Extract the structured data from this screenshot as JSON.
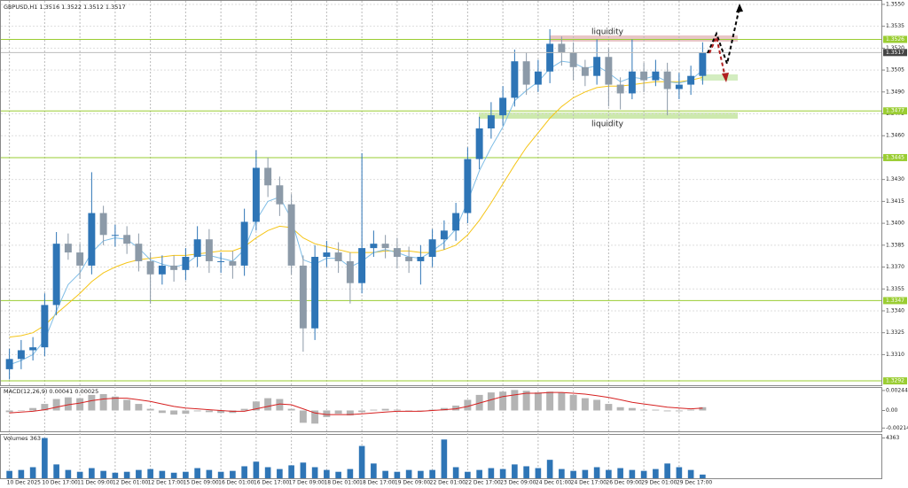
{
  "chart_data": [
    {
      "type": "candlestick",
      "title": "GBPUSD,H1  1.3516 1.3522 1.3512 1.3517",
      "categories": [
        "10 Dec 2025",
        null,
        null,
        "10 Dec 17:00",
        null,
        null,
        "11 Dec 09:00",
        null,
        null,
        "12 Dec 01:00",
        null,
        null,
        "12 Dec 17:00",
        null,
        null,
        "15 Dec 09:00",
        null,
        null,
        "16 Dec 01:00",
        null,
        null,
        "16 Dec 17:00",
        null,
        null,
        "17 Dec 09:00",
        null,
        null,
        "18 Dec 01:00",
        null,
        null,
        "18 Dec 17:00",
        null,
        null,
        "19 Dec 09:00",
        null,
        null,
        "22 Dec 01:00",
        null,
        null,
        "22 Dec 17:00",
        null,
        null,
        "23 Dec 09:00",
        null,
        null,
        "24 Dec 01:00",
        null,
        null,
        "24 Dec 17:00",
        null,
        null,
        "26 Dec 09:00",
        null,
        null,
        "29 Dec 01:00",
        null,
        null,
        "29 Dec 17:00",
        null,
        null
      ],
      "open": [
        1.33,
        1.3307,
        1.3313,
        1.3315,
        1.3344,
        1.3386,
        1.338,
        1.3371,
        1.3407,
        1.3392,
        1.3392,
        1.3386,
        1.3374,
        1.3365,
        1.3371,
        1.3368,
        1.3377,
        1.3389,
        1.3374,
        1.3374,
        1.3371,
        1.3401,
        1.3438,
        1.3426,
        1.3413,
        1.3371,
        1.3328,
        1.3377,
        1.338,
        1.3374,
        1.3359,
        1.3383,
        1.3386,
        1.3383,
        1.3377,
        1.3374,
        1.3377,
        1.3389,
        1.3395,
        1.3407,
        1.3444,
        1.3465,
        1.3474,
        1.3486,
        1.3511,
        1.3495,
        1.3504,
        1.3523,
        1.3517,
        1.3507,
        1.3501,
        1.3514,
        1.3495,
        1.3489,
        1.3504,
        1.3498,
        1.3504,
        1.3492,
        1.3495,
        1.3501
      ],
      "high": [
        1.3314,
        1.332,
        1.3322,
        1.3352,
        1.3394,
        1.3393,
        1.3386,
        1.3435,
        1.3412,
        1.3399,
        1.3398,
        1.3393,
        1.338,
        1.3378,
        1.3378,
        1.3383,
        1.3398,
        1.3396,
        1.338,
        1.3381,
        1.341,
        1.345,
        1.3445,
        1.3432,
        1.342,
        1.3378,
        1.3385,
        1.3388,
        1.3387,
        1.338,
        1.3448,
        1.3395,
        1.3392,
        1.339,
        1.3384,
        1.3385,
        1.3396,
        1.3402,
        1.3414,
        1.3452,
        1.3473,
        1.3483,
        1.3494,
        1.3519,
        1.3517,
        1.3512,
        1.3533,
        1.3528,
        1.3524,
        1.3512,
        1.3526,
        1.352,
        1.35,
        1.3526,
        1.351,
        1.3512,
        1.351,
        1.3503,
        1.3508,
        1.3524
      ],
      "low": [
        1.3293,
        1.33,
        1.3306,
        1.3309,
        1.3337,
        1.3375,
        1.3362,
        1.3365,
        1.3385,
        1.3384,
        1.3379,
        1.3367,
        1.3345,
        1.3358,
        1.336,
        1.3361,
        1.337,
        1.3366,
        1.3366,
        1.3362,
        1.3364,
        1.3395,
        1.3418,
        1.3405,
        1.3365,
        1.3312,
        1.332,
        1.337,
        1.3366,
        1.3345,
        1.3352,
        1.3377,
        1.3376,
        1.3369,
        1.3366,
        1.3358,
        1.337,
        1.3382,
        1.3388,
        1.34,
        1.3437,
        1.3458,
        1.3467,
        1.348,
        1.3488,
        1.349,
        1.3496,
        1.3508,
        1.3498,
        1.3494,
        1.3495,
        1.348,
        1.3478,
        1.3485,
        1.349,
        1.3494,
        1.3474,
        1.3485,
        1.3488,
        1.3495
      ],
      "close": [
        1.3307,
        1.3313,
        1.3315,
        1.3344,
        1.3386,
        1.338,
        1.3371,
        1.3407,
        1.3392,
        1.3392,
        1.3386,
        1.3374,
        1.3365,
        1.3371,
        1.3368,
        1.3377,
        1.3389,
        1.3374,
        1.3374,
        1.3371,
        1.3401,
        1.3438,
        1.3426,
        1.3413,
        1.3371,
        1.3328,
        1.3377,
        1.338,
        1.3374,
        1.3359,
        1.3383,
        1.3386,
        1.3383,
        1.3377,
        1.3374,
        1.3377,
        1.3389,
        1.3395,
        1.3407,
        1.3444,
        1.3465,
        1.3474,
        1.3486,
        1.3511,
        1.3495,
        1.3504,
        1.3523,
        1.3517,
        1.3507,
        1.3501,
        1.3514,
        1.3495,
        1.3489,
        1.3504,
        1.3498,
        1.3504,
        1.3492,
        1.3495,
        1.3501,
        1.3517
      ],
      "up_color": "#2e75b6",
      "down_color": "#8c9aa8",
      "lines": [
        {
          "color": "#f5c518",
          "values": [
            1.3322,
            1.3323,
            1.3325,
            1.333,
            1.3338,
            1.3345,
            1.3352,
            1.336,
            1.3366,
            1.337,
            1.3373,
            1.3375,
            1.3376,
            1.3377,
            1.3378,
            1.3378,
            1.3379,
            1.338,
            1.3381,
            1.3381,
            1.3384,
            1.339,
            1.3395,
            1.3398,
            1.3397,
            1.339,
            1.3386,
            1.3384,
            1.3382,
            1.338,
            1.338,
            1.338,
            1.3381,
            1.3381,
            1.3381,
            1.338,
            1.338,
            1.3382,
            1.3385,
            1.3392,
            1.3402,
            1.3414,
            1.3427,
            1.344,
            1.3452,
            1.3462,
            1.3472,
            1.348,
            1.3486,
            1.349,
            1.3493,
            1.3494,
            1.3494,
            1.3495,
            1.3496,
            1.3497,
            1.3497,
            1.3497,
            1.3498,
            1.35
          ]
        },
        {
          "color": "#7fbde6",
          "values": [
            1.3303,
            1.3306,
            1.331,
            1.332,
            1.334,
            1.3358,
            1.3366,
            1.338,
            1.3388,
            1.339,
            1.3389,
            1.3383,
            1.3375,
            1.3372,
            1.337,
            1.3372,
            1.3378,
            1.3378,
            1.3376,
            1.3374,
            1.3382,
            1.3402,
            1.3415,
            1.3418,
            1.3403,
            1.3375,
            1.3372,
            1.3376,
            1.3376,
            1.337,
            1.3374,
            1.338,
            1.3382,
            1.338,
            1.3377,
            1.3376,
            1.3381,
            1.3387,
            1.3396,
            1.3415,
            1.3436,
            1.3452,
            1.3466,
            1.3484,
            1.3491,
            1.3497,
            1.3506,
            1.3511,
            1.351,
            1.3506,
            1.3508,
            1.3503,
            1.3497,
            1.35,
            1.3499,
            1.3501,
            1.3497,
            1.3496,
            1.3498,
            1.3505
          ]
        }
      ],
      "levels": [
        1.3526,
        1.3477,
        1.3445,
        1.3347,
        1.3292
      ],
      "level_color": "#9acd32",
      "last": 1.3517,
      "annotations": [
        "liquidity",
        "liquidity"
      ],
      "ylim": [
        1.3289,
        1.3553
      ],
      "yticks": [
        {
          "value": 1.355,
          "label": "1.3550"
        },
        1.3535,
        {
          "value": 1.352,
          "label": "1.3520"
        },
        1.3505,
        {
          "value": 1.349,
          "label": "1.3490"
        },
        1.3475,
        {
          "value": 1.346,
          "label": "1.3460"
        },
        1.3445,
        {
          "value": 1.343,
          "label": "1.3430"
        },
        1.3415,
        {
          "value": 1.34,
          "label": "1.3400"
        },
        1.3385,
        {
          "value": 1.337,
          "label": "1.3370"
        },
        1.3355,
        {
          "value": 1.334,
          "label": "1.3340"
        },
        1.3325,
        {
          "value": 1.331,
          "label": "1.3310"
        }
      ],
      "grid": true
    },
    {
      "type": "macd",
      "title": "MACD(12,26,9) 0.00041 0.00025",
      "values": [
        -0.0002,
        0.0,
        0.0003,
        0.0008,
        0.0014,
        0.0016,
        0.0015,
        0.0019,
        0.002,
        0.0017,
        0.0013,
        0.0008,
        0.0002,
        -0.0003,
        -0.0005,
        -0.0004,
        -0.0001,
        -0.0002,
        -0.0003,
        -0.0003,
        0.0002,
        0.0011,
        0.0015,
        0.0014,
        0.0002,
        -0.0015,
        -0.0016,
        -0.0008,
        -0.0004,
        -0.0006,
        -0.0002,
        0.0001,
        0.0002,
        0.0001,
        -0.0001,
        -0.0001,
        0.0001,
        0.0003,
        0.0006,
        0.0013,
        0.0019,
        0.0022,
        0.0023,
        0.0025,
        0.0024,
        0.0022,
        0.0023,
        0.0022,
        0.0019,
        0.0015,
        0.0013,
        0.0008,
        0.0004,
        0.0003,
        0.0001,
        0.0001,
        -0.0001,
        -0.0001,
        0.0001,
        0.0004
      ],
      "color": "#b4b4b4",
      "signal": [
        -0.0003,
        -0.0002,
        -0.0001,
        0.0001,
        0.0004,
        0.0007,
        0.0009,
        0.0012,
        0.0014,
        0.0015,
        0.0015,
        0.0013,
        0.0011,
        0.0008,
        0.0005,
        0.0003,
        0.0002,
        0.0001,
        0.0,
        -0.0001,
        -0.0001,
        0.0002,
        0.0005,
        0.0008,
        0.0007,
        0.0002,
        -0.0003,
        -0.0005,
        -0.0005,
        -0.0005,
        -0.0004,
        -0.0003,
        -0.0002,
        -0.0001,
        -0.0001,
        -0.0001,
        0.0,
        0.0001,
        0.0002,
        0.0005,
        0.0009,
        0.0013,
        0.0017,
        0.0019,
        0.0021,
        0.0021,
        0.0022,
        0.0022,
        0.0021,
        0.002,
        0.0018,
        0.0016,
        0.0013,
        0.001,
        0.0008,
        0.0006,
        0.0004,
        0.0003,
        0.0002,
        0.0003
      ],
      "signal_color": "#d62020",
      "ylim": [
        -0.00254,
        0.00286
      ],
      "yticks": [
        0.00244,
        {
          "value": 0,
          "label": "0.00"
        },
        -0.00214
      ]
    },
    {
      "type": "volume",
      "title": "Volumes 363",
      "values": [
        800,
        900,
        1200,
        4363,
        1500,
        900,
        700,
        1100,
        800,
        600,
        700,
        900,
        1000,
        800,
        600,
        700,
        1100,
        900,
        700,
        800,
        1300,
        1800,
        1200,
        1000,
        1400,
        1700,
        1200,
        900,
        700,
        1000,
        3500,
        1600,
        800,
        700,
        900,
        800,
        900,
        4200,
        1200,
        700,
        900,
        1100,
        1000,
        1500,
        1300,
        1100,
        2000,
        1000,
        800,
        900,
        1200,
        900,
        1100,
        900,
        800,
        1000,
        1600,
        1200,
        900,
        400
      ],
      "color": "#2e75b6",
      "ylim": [
        0,
        4800
      ],
      "yticks": [
        4363
      ]
    }
  ]
}
